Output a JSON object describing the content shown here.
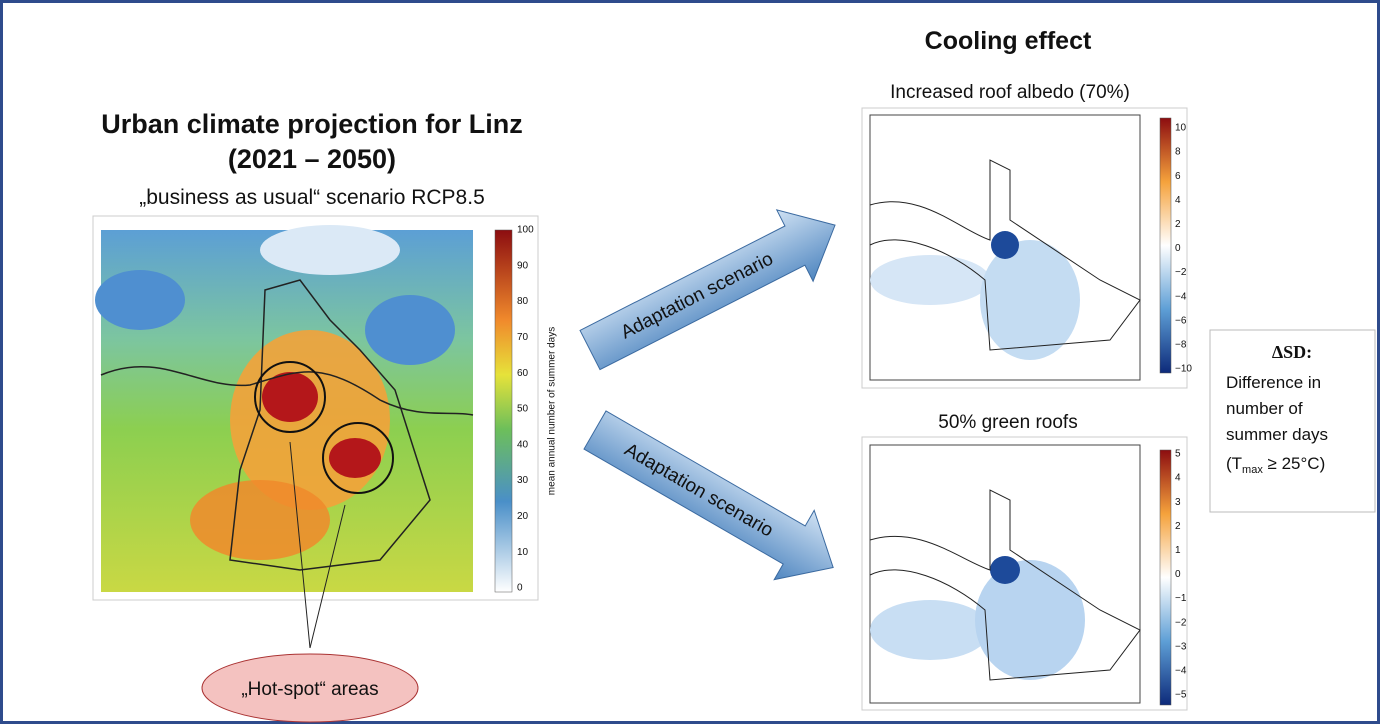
{
  "left": {
    "title": "Urban climate projection for Linz",
    "period": "(2021 – 2050)",
    "scenario": "„business as usual“ scenario RCP8.5",
    "colorbar_label": "mean annual number of summer days",
    "colorbar_ticks": [
      "100",
      "90",
      "80",
      "70",
      "60",
      "50",
      "40",
      "30",
      "20",
      "10",
      "0"
    ],
    "callout": "„Hot-spot“ areas"
  },
  "arrows": [
    "Adaptation scenario",
    "Adaptation scenario"
  ],
  "right": {
    "title": "Cooling effect",
    "panels": [
      {
        "title": "Increased roof albedo (70%)",
        "colorbar_ticks": [
          "10",
          "8",
          "6",
          "4",
          "2",
          "0",
          "−2",
          "−4",
          "−6",
          "−8",
          "−10"
        ]
      },
      {
        "title": "50% green roofs",
        "colorbar_ticks": [
          "5",
          "4",
          "3",
          "2",
          "1",
          "0",
          "−1",
          "−2",
          "−3",
          "−4",
          "−5"
        ]
      }
    ]
  },
  "legend": {
    "heading": "ΔSD:",
    "lines": [
      "Difference in",
      "number of",
      "summer days"
    ],
    "formula": {
      "open": "(T",
      "subscript": "max",
      "rest": " ≥ 25°C)"
    }
  }
}
